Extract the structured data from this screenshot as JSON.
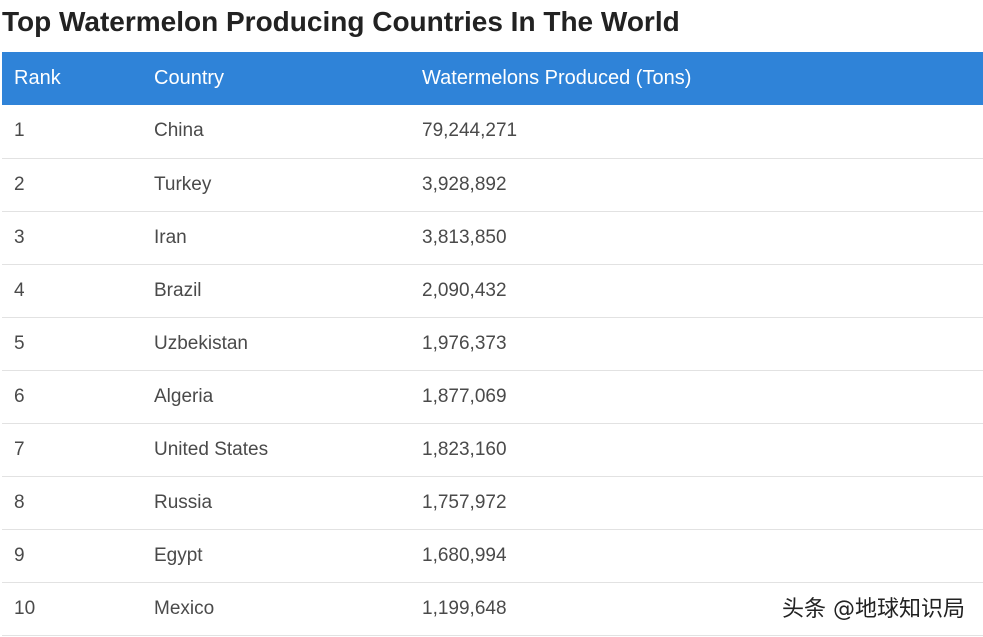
{
  "page": {
    "title": "Top Watermelon Producing Countries In The World"
  },
  "table": {
    "header_color": "#2f83d8",
    "headers": {
      "rank": "Rank",
      "country": "Country",
      "value": "Watermelons Produced (Tons)"
    },
    "rows": [
      {
        "rank": "1",
        "country": "China",
        "value": "79,244,271"
      },
      {
        "rank": "2",
        "country": "Turkey",
        "value": "3,928,892"
      },
      {
        "rank": "3",
        "country": "Iran",
        "value": "3,813,850"
      },
      {
        "rank": "4",
        "country": "Brazil",
        "value": "2,090,432"
      },
      {
        "rank": "5",
        "country": "Uzbekistan",
        "value": "1,976,373"
      },
      {
        "rank": "6",
        "country": "Algeria",
        "value": "1,877,069"
      },
      {
        "rank": "7",
        "country": "United States",
        "value": "1,823,160"
      },
      {
        "rank": "8",
        "country": "Russia",
        "value": "1,757,972"
      },
      {
        "rank": "9",
        "country": "Egypt",
        "value": "1,680,994"
      },
      {
        "rank": "10",
        "country": "Mexico",
        "value": "1,199,648"
      }
    ]
  },
  "watermark": {
    "text": "头条 @地球知识局"
  }
}
